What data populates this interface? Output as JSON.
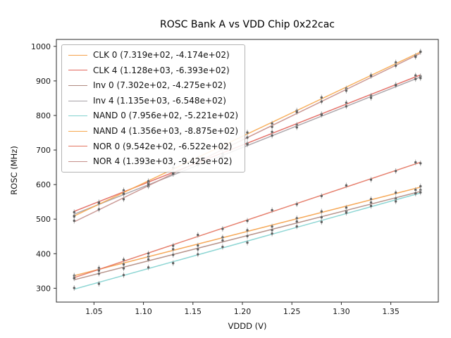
{
  "title": "ROSC Bank A vs VDD Chip 0x22cac",
  "chart_data": {
    "type": "scatter",
    "title": "ROSC Bank A vs VDD Chip 0x22cac",
    "xlabel": "VDDD (V)",
    "ylabel": "ROSC (MHz)",
    "xlim": [
      1.012,
      1.398
    ],
    "ylim": [
      260,
      1020
    ],
    "xticks": [
      "1.05",
      "1.10",
      "1.15",
      "1.20",
      "1.25",
      "1.30",
      "1.35"
    ],
    "xtick_values": [
      1.05,
      1.1,
      1.15,
      1.2,
      1.25,
      1.3,
      1.35
    ],
    "yticks": [
      300,
      400,
      500,
      600,
      700,
      800,
      900,
      1000
    ],
    "x_points": [
      1.03,
      1.055,
      1.08,
      1.105,
      1.13,
      1.155,
      1.18,
      1.205,
      1.23,
      1.255,
      1.28,
      1.305,
      1.33,
      1.355,
      1.375,
      1.38
    ],
    "legend_position": "upper left",
    "grid": false,
    "error_bar": 8,
    "marker_color": "#5f5f5f",
    "error_bar_color": "#ababab",
    "series": [
      {
        "label": "CLK 0 (7.319e+02, -4.174e+02)",
        "slope": 731.9,
        "intercept": -417.4,
        "color": "#f5a24b"
      },
      {
        "label": "CLK 4 (1.128e+03, -6.393e+02)",
        "slope": 1128.0,
        "intercept": -639.3,
        "color": "#e2655c"
      },
      {
        "label": "Inv 0 (7.302e+02, -4.275e+02)",
        "slope": 730.2,
        "intercept": -427.5,
        "color": "#b08a80"
      },
      {
        "label": "Inv 4 (1.135e+03, -6.548e+02)",
        "slope": 1135.0,
        "intercept": -654.8,
        "color": "#a5a0a5"
      },
      {
        "label": "NAND 0 (7.956e+02, -5.221e+02)",
        "slope": 795.6,
        "intercept": -522.1,
        "color": "#82d2cf"
      },
      {
        "label": "NAND 4 (1.356e+03, -8.875e+02)",
        "slope": 1356.0,
        "intercept": -887.5,
        "color": "#f7a84e"
      },
      {
        "label": "NOR 0 (9.542e+02, -6.522e+02)",
        "slope": 954.2,
        "intercept": -652.2,
        "color": "#e3735f"
      },
      {
        "label": "NOR 4 (1.393e+03, -9.425e+02)",
        "slope": 1393.0,
        "intercept": -942.5,
        "color": "#c58f8b"
      }
    ]
  }
}
